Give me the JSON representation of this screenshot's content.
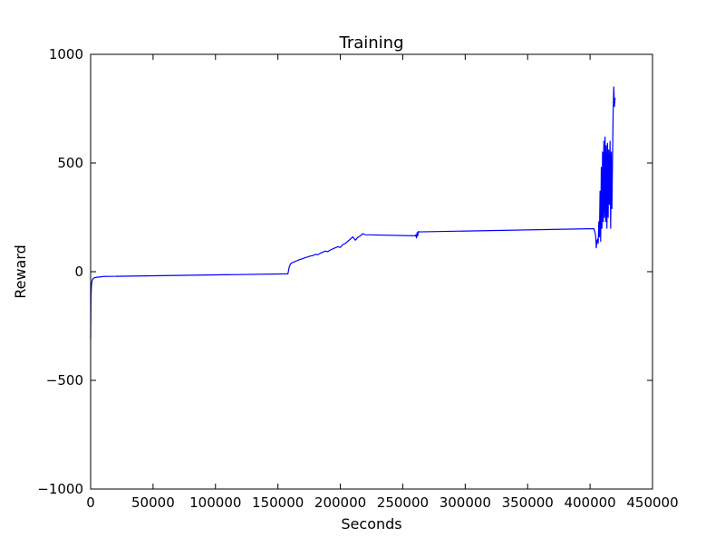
{
  "chart_data": {
    "type": "line",
    "title": "Training",
    "xlabel": "Seconds",
    "ylabel": "Reward",
    "xlim": [
      0,
      450000
    ],
    "ylim": [
      -1000,
      1000
    ],
    "xticks": [
      0,
      50000,
      100000,
      150000,
      200000,
      250000,
      300000,
      350000,
      400000,
      450000
    ],
    "xtick_labels": [
      "0",
      "50000",
      "100000",
      "150000",
      "200000",
      "250000",
      "300000",
      "350000",
      "400000",
      "450000"
    ],
    "yticks": [
      -1000,
      -500,
      0,
      500,
      1000
    ],
    "ytick_labels": [
      "−1000",
      "−500",
      "0",
      "500",
      "1000"
    ],
    "grid": false,
    "legend": "none",
    "series": [
      {
        "color": "#0000ff",
        "x": [
          0,
          300,
          700,
          1200,
          2000,
          3000,
          4500,
          6000,
          8000,
          10000,
          158000,
          159000,
          160000,
          161000,
          163000,
          165000,
          167000,
          170000,
          172000,
          174000,
          176000,
          178000,
          180000,
          182000,
          184000,
          186000,
          188000,
          190000,
          192000,
          194000,
          196000,
          198000,
          200000,
          202000,
          204000,
          206000,
          208000,
          210000,
          212000,
          214000,
          216000,
          218000,
          220000,
          260000,
          260500,
          261000,
          261500,
          262000,
          262500,
          263000,
          403000,
          404000,
          404500,
          405000,
          405500,
          406000,
          406500,
          407000,
          407500,
          408000,
          408500,
          409000,
          409500,
          410000,
          410500,
          411000,
          411500,
          412000,
          412500,
          413000,
          413500,
          414000,
          414500,
          415000,
          415500,
          416000,
          416500,
          417000,
          417500,
          418000,
          418500,
          419000,
          419500,
          420000
        ],
        "y": [
          -310,
          -110,
          -60,
          -40,
          -32,
          -28,
          -26,
          -25,
          -24,
          -22,
          -10,
          20,
          35,
          40,
          45,
          50,
          55,
          60,
          65,
          68,
          72,
          74,
          80,
          78,
          85,
          90,
          95,
          92,
          100,
          105,
          110,
          115,
          112,
          125,
          130,
          140,
          150,
          160,
          145,
          158,
          165,
          175,
          170,
          165,
          170,
          155,
          180,
          165,
          185,
          183,
          198,
          180,
          160,
          110,
          140,
          150,
          130,
          230,
          160,
          370,
          140,
          480,
          200,
          550,
          230,
          600,
          250,
          620,
          230,
          580,
          200,
          590,
          250,
          560,
          310,
          600,
          200,
          550,
          290,
          520,
          740,
          850,
          760,
          800
        ]
      }
    ]
  }
}
